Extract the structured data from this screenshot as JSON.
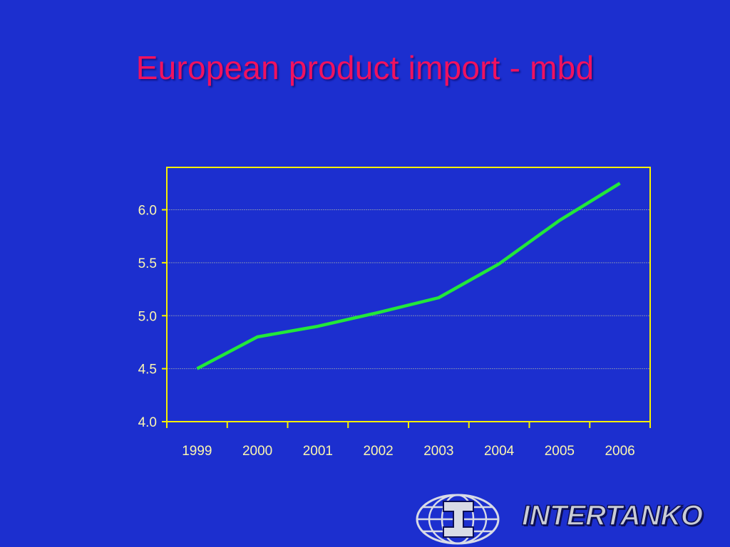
{
  "slide": {
    "title": "European product import - mbd"
  },
  "logo": {
    "text": "INTERTANKO"
  },
  "colors": {
    "background": "#1c2fcf",
    "title": "#f0125f",
    "axis": "#f6f000",
    "line": "#22e83a",
    "tick_text": "#fbf6b0",
    "gridline": "#7c86b8"
  },
  "chart_data": {
    "type": "line",
    "title": "European product import - mbd",
    "xlabel": "",
    "ylabel": "",
    "categories": [
      "1999",
      "2000",
      "2001",
      "2002",
      "2003",
      "2004",
      "2005",
      "2006"
    ],
    "series": [
      {
        "values": [
          4.5,
          4.8,
          4.9,
          5.03,
          5.17,
          5.49,
          5.9,
          6.25
        ]
      }
    ],
    "ylim": [
      4.0,
      6.4
    ],
    "yticks": [
      "4.0",
      "4.5",
      "5.0",
      "5.5",
      "6.0"
    ],
    "grid": "horizontal",
    "legend": "none"
  }
}
